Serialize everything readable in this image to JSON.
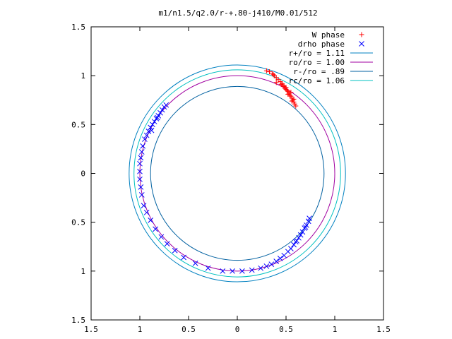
{
  "chart_data": {
    "type": "scatter",
    "title": "m1/n1.5/q2.0/r-+.80-j410/M0.01/512",
    "xlim": [
      -1.5,
      1.5
    ],
    "ylim": [
      -1.5,
      1.5
    ],
    "x_ticks": [
      {
        "value": -1.5,
        "label": "1.5"
      },
      {
        "value": -1.0,
        "label": "1"
      },
      {
        "value": -0.5,
        "label": "0.5"
      },
      {
        "value": 0.0,
        "label": "0"
      },
      {
        "value": 0.5,
        "label": "0.5"
      },
      {
        "value": 1.0,
        "label": "1"
      },
      {
        "value": 1.5,
        "label": "1.5"
      }
    ],
    "y_ticks": [
      {
        "value": 1.5,
        "label": "1.5"
      },
      {
        "value": 1.0,
        "label": "1"
      },
      {
        "value": 0.5,
        "label": "0.5"
      },
      {
        "value": 0.0,
        "label": "0"
      },
      {
        "value": -0.5,
        "label": "0.5"
      },
      {
        "value": -1.0,
        "label": "1"
      },
      {
        "value": -1.5,
        "label": "1.5"
      }
    ],
    "grid": false,
    "legend_position": "top-right",
    "series": [
      {
        "name": "W phase",
        "kind": "points",
        "marker": "plus",
        "color": "#ff0000",
        "points": [
          [
            0.3,
            1.05
          ],
          [
            0.33,
            1.04
          ],
          [
            0.36,
            1.02
          ],
          [
            0.38,
            1.0
          ],
          [
            0.4,
            0.98
          ],
          [
            0.42,
            0.96
          ],
          [
            0.44,
            0.94
          ],
          [
            0.46,
            0.92
          ],
          [
            0.47,
            0.9
          ],
          [
            0.48,
            0.89
          ],
          [
            0.49,
            0.87
          ],
          [
            0.5,
            0.86
          ],
          [
            0.51,
            0.85
          ],
          [
            0.52,
            0.84
          ],
          [
            0.53,
            0.82
          ],
          [
            0.54,
            0.8
          ],
          [
            0.55,
            0.79
          ],
          [
            0.56,
            0.77
          ],
          [
            0.57,
            0.75
          ],
          [
            0.58,
            0.73
          ],
          [
            0.59,
            0.71
          ],
          [
            0.6,
            0.69
          ],
          [
            0.4,
            0.93
          ],
          [
            0.45,
            0.91
          ],
          [
            0.5,
            0.88
          ],
          [
            0.52,
            0.81
          ],
          [
            0.56,
            0.74
          ],
          [
            0.55,
            0.83
          ],
          [
            0.58,
            0.76
          ],
          [
            0.37,
            1.01
          ]
        ]
      },
      {
        "name": "drho phase",
        "kind": "points",
        "marker": "cross",
        "color": "#0000ff",
        "points": [
          [
            -0.95,
            0.35
          ],
          [
            -0.93,
            0.39
          ],
          [
            -0.91,
            0.43
          ],
          [
            -0.89,
            0.47
          ],
          [
            -0.87,
            0.5
          ],
          [
            -0.85,
            0.53
          ],
          [
            -0.83,
            0.56
          ],
          [
            -0.81,
            0.59
          ],
          [
            -0.79,
            0.62
          ],
          [
            -0.77,
            0.65
          ],
          [
            -0.75,
            0.68
          ],
          [
            -0.73,
            0.7
          ],
          [
            -0.97,
            0.28
          ],
          [
            -0.98,
            0.22
          ],
          [
            -0.99,
            0.16
          ],
          [
            -1.0,
            0.1
          ],
          [
            -1.0,
            0.02
          ],
          [
            -1.0,
            -0.06
          ],
          [
            -0.99,
            -0.14
          ],
          [
            -0.98,
            -0.22
          ],
          [
            -0.96,
            -0.33
          ],
          [
            -0.93,
            -0.4
          ],
          [
            -0.89,
            -0.48
          ],
          [
            -0.84,
            -0.57
          ],
          [
            -0.78,
            -0.65
          ],
          [
            -0.72,
            -0.72
          ],
          [
            -0.64,
            -0.79
          ],
          [
            -0.55,
            -0.86
          ],
          [
            -0.43,
            -0.92
          ],
          [
            -0.3,
            -0.97
          ],
          [
            -0.15,
            -1.0
          ],
          [
            -0.05,
            -1.0
          ],
          [
            0.05,
            -1.0
          ],
          [
            0.15,
            -0.99
          ],
          [
            0.24,
            -0.97
          ],
          [
            0.3,
            -0.95
          ],
          [
            0.35,
            -0.93
          ],
          [
            0.4,
            -0.9
          ],
          [
            0.44,
            -0.87
          ],
          [
            0.48,
            -0.84
          ],
          [
            0.52,
            -0.8
          ],
          [
            0.55,
            -0.77
          ],
          [
            0.58,
            -0.73
          ],
          [
            0.61,
            -0.69
          ],
          [
            0.63,
            -0.66
          ],
          [
            0.65,
            -0.63
          ],
          [
            0.67,
            -0.6
          ],
          [
            0.69,
            -0.56
          ],
          [
            0.71,
            -0.53
          ],
          [
            0.73,
            -0.49
          ],
          [
            0.74,
            -0.46
          ],
          [
            -0.88,
            0.44
          ],
          [
            -0.82,
            0.57
          ],
          [
            0.6,
            -0.7
          ],
          [
            0.7,
            -0.55
          ]
        ]
      },
      {
        "name": "r+/ro = 1.11",
        "kind": "circle",
        "r": 1.11,
        "color": "#0080c0"
      },
      {
        "name": "ro/ro = 1.00",
        "kind": "circle",
        "r": 1.0,
        "color": "#a000a0"
      },
      {
        "name": "r-/ro = .89",
        "kind": "circle",
        "r": 0.89,
        "color": "#0060a0"
      },
      {
        "name": "rc/ro = 1.06",
        "kind": "circle",
        "r": 1.06,
        "color": "#00c0c0"
      }
    ]
  }
}
